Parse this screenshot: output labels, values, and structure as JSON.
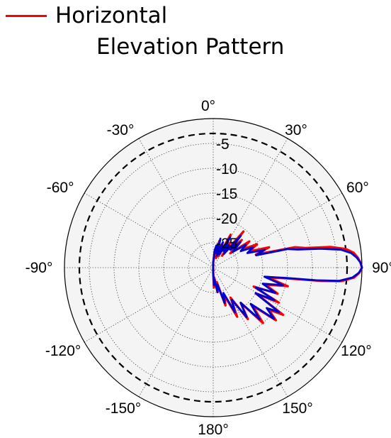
{
  "chart_data": {
    "type": "polar-line",
    "title": "Elevation Pattern",
    "legend": {
      "placement": "top-left",
      "entries": [
        {
          "name": "Horizontal",
          "color": "#ff0000"
        }
      ]
    },
    "angle_ticks": [
      "0°",
      "30°",
      "60°",
      "90°",
      "120°",
      "150°",
      "180°",
      "-150°",
      "-120°",
      "-90°",
      "-60°",
      "-30°"
    ],
    "radial_ticks": [
      -25,
      -20,
      -15,
      -10,
      -5
    ],
    "rlim": [
      -30,
      0
    ],
    "reference_circle_db": -3,
    "grid": true,
    "series": [
      {
        "name": "Horizontal",
        "color": "#ff0000",
        "points": [
          [
            0,
            -29
          ],
          [
            5,
            -27
          ],
          [
            8,
            -26
          ],
          [
            10,
            -27
          ],
          [
            13,
            -24.5
          ],
          [
            16,
            -28
          ],
          [
            20,
            -25
          ],
          [
            24,
            -27.5
          ],
          [
            28,
            -22.5
          ],
          [
            31,
            -26
          ],
          [
            34,
            -24
          ],
          [
            37,
            -27
          ],
          [
            40,
            -20.5
          ],
          [
            43,
            -25
          ],
          [
            46,
            -22
          ],
          [
            50,
            -25.5
          ],
          [
            54,
            -21
          ],
          [
            58,
            -23
          ],
          [
            62,
            -20
          ],
          [
            66,
            -22
          ],
          [
            70,
            -18
          ],
          [
            73,
            -21
          ],
          [
            76,
            -13
          ],
          [
            78,
            -11
          ],
          [
            80,
            -6
          ],
          [
            82,
            -3
          ],
          [
            84,
            -1.5
          ],
          [
            86,
            -0.8
          ],
          [
            88,
            -0.3
          ],
          [
            90,
            0
          ],
          [
            92,
            -0.5
          ],
          [
            94,
            -1.5
          ],
          [
            96,
            -4
          ],
          [
            97,
            -8
          ],
          [
            98,
            -14
          ],
          [
            100,
            -19
          ],
          [
            104,
            -14.5
          ],
          [
            108,
            -19
          ],
          [
            112,
            -16
          ],
          [
            115,
            -21
          ],
          [
            118,
            -15
          ],
          [
            121,
            -20
          ],
          [
            124,
            -13
          ],
          [
            127,
            -16
          ],
          [
            130,
            -13.5
          ],
          [
            134,
            -19
          ],
          [
            138,
            -15
          ],
          [
            142,
            -21
          ],
          [
            146,
            -17.5
          ],
          [
            150,
            -23
          ],
          [
            154,
            -19
          ],
          [
            158,
            -24
          ],
          [
            162,
            -22
          ],
          [
            166,
            -27
          ],
          [
            170,
            -25
          ],
          [
            174,
            -28
          ],
          [
            178,
            -26
          ],
          [
            180,
            -29
          ]
        ]
      },
      {
        "name": "",
        "color": "#0000cc",
        "points": [
          [
            0,
            -29
          ],
          [
            5,
            -26.5
          ],
          [
            8,
            -25.5
          ],
          [
            11,
            -27
          ],
          [
            14,
            -24
          ],
          [
            17,
            -27.5
          ],
          [
            21,
            -24.5
          ],
          [
            25,
            -27
          ],
          [
            29,
            -23
          ],
          [
            32,
            -26
          ],
          [
            35,
            -24.5
          ],
          [
            38,
            -26.5
          ],
          [
            41,
            -21.5
          ],
          [
            44,
            -25
          ],
          [
            47,
            -22.5
          ],
          [
            51,
            -25
          ],
          [
            55,
            -22
          ],
          [
            59,
            -23.5
          ],
          [
            63,
            -21
          ],
          [
            67,
            -22.5
          ],
          [
            71,
            -19
          ],
          [
            74,
            -21
          ],
          [
            76,
            -14.5
          ],
          [
            78,
            -12.5
          ],
          [
            80,
            -8
          ],
          [
            82,
            -4
          ],
          [
            84,
            -2
          ],
          [
            86,
            -1
          ],
          [
            88,
            -0.3
          ],
          [
            90,
            0
          ],
          [
            92,
            -0.6
          ],
          [
            94,
            -1.8
          ],
          [
            96,
            -4.5
          ],
          [
            97,
            -9
          ],
          [
            98,
            -15
          ],
          [
            100,
            -19.5
          ],
          [
            104,
            -15.5
          ],
          [
            108,
            -19.5
          ],
          [
            112,
            -16.5
          ],
          [
            115,
            -20.5
          ],
          [
            118,
            -16
          ],
          [
            121,
            -20
          ],
          [
            124,
            -14
          ],
          [
            127,
            -16.5
          ],
          [
            130,
            -14
          ],
          [
            134,
            -19.5
          ],
          [
            138,
            -16
          ],
          [
            142,
            -21
          ],
          [
            146,
            -18
          ],
          [
            150,
            -22.5
          ],
          [
            154,
            -20
          ],
          [
            158,
            -24.5
          ],
          [
            162,
            -22.5
          ],
          [
            166,
            -26.5
          ],
          [
            170,
            -25
          ],
          [
            174,
            -27.5
          ],
          [
            178,
            -26.5
          ],
          [
            180,
            -29
          ]
        ]
      }
    ]
  }
}
